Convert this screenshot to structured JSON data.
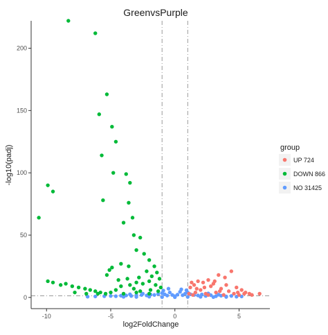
{
  "chart_data": {
    "type": "scatter",
    "title": "GreenvsPurple",
    "xlabel": "log2FoldChange",
    "ylabel": "-log10(padj)",
    "xlim": [
      -11.2,
      7.4
    ],
    "ylim": [
      -9,
      222
    ],
    "x_ticks": [
      -10,
      -5,
      0,
      5
    ],
    "y_ticks": [
      0,
      50,
      100,
      150,
      200
    ],
    "x_tick_labels": [
      "-10",
      "-5",
      "0",
      "5"
    ],
    "y_tick_labels": [
      "0",
      "50",
      "100",
      "150",
      "200"
    ],
    "thresholds": {
      "log2fc": [
        -1,
        1
      ],
      "padj_line": 1.3
    },
    "grid": false,
    "legend": {
      "title": "group",
      "position": "right",
      "entries": [
        {
          "key": "UP",
          "label": "UP 724",
          "color": "#F8766D"
        },
        {
          "key": "DOWN",
          "label": "DOWN 866",
          "color": "#00BA38"
        },
        {
          "key": "NO",
          "label": "NO 31425",
          "color": "#619CFF"
        }
      ]
    },
    "series": [
      {
        "name": "NO 31425",
        "color": "#619CFF",
        "points": [
          [
            -6.8,
            0.6
          ],
          [
            -6.2,
            0.8
          ],
          [
            -5.5,
            1.0
          ],
          [
            -5.0,
            1.2
          ],
          [
            -4.6,
            1.0
          ],
          [
            -4.2,
            1.4
          ],
          [
            -3.8,
            1.6
          ],
          [
            -3.4,
            1.2
          ],
          [
            -3.0,
            1.8
          ],
          [
            -2.6,
            2.0
          ],
          [
            -2.2,
            1.6
          ],
          [
            -1.9,
            2.4
          ],
          [
            -1.6,
            2.0
          ],
          [
            -1.3,
            2.8
          ],
          [
            -1.0,
            3.5
          ],
          [
            -0.8,
            2.5
          ],
          [
            -0.6,
            1.5
          ],
          [
            -0.4,
            4.0
          ],
          [
            -0.2,
            2.0
          ],
          [
            0.0,
            1.0
          ],
          [
            0.2,
            2.2
          ],
          [
            0.4,
            4.5
          ],
          [
            0.6,
            1.8
          ],
          [
            0.8,
            3.0
          ],
          [
            1.0,
            4.0
          ],
          [
            1.2,
            2.6
          ],
          [
            1.5,
            2.0
          ],
          [
            1.8,
            1.6
          ],
          [
            2.1,
            2.4
          ],
          [
            2.4,
            1.2
          ],
          [
            2.8,
            1.8
          ],
          [
            3.2,
            1.0
          ],
          [
            3.6,
            1.4
          ],
          [
            4.0,
            0.8
          ],
          [
            4.4,
            1.2
          ],
          [
            4.8,
            0.6
          ],
          [
            5.2,
            0.8
          ],
          [
            -4.0,
            0.5
          ],
          [
            -3.0,
            0.4
          ],
          [
            -2.0,
            0.6
          ],
          [
            -1.0,
            0.3
          ],
          [
            0.0,
            0.2
          ],
          [
            1.0,
            0.4
          ],
          [
            2.0,
            0.5
          ],
          [
            3.0,
            0.3
          ],
          [
            4.0,
            0.4
          ],
          [
            -0.9,
            5.5
          ],
          [
            0.9,
            5.8
          ],
          [
            -0.5,
            7.0
          ],
          [
            0.5,
            6.5
          ],
          [
            -2.5,
            3.0
          ],
          [
            2.6,
            3.2
          ],
          [
            -3.5,
            2.5
          ],
          [
            3.4,
            2.2
          ]
        ]
      },
      {
        "name": "DOWN 866",
        "color": "#00BA38",
        "points": [
          [
            -8.3,
            222
          ],
          [
            -6.2,
            212
          ],
          [
            -5.3,
            163
          ],
          [
            -4.9,
            137
          ],
          [
            -5.9,
            147
          ],
          [
            -4.6,
            125
          ],
          [
            -5.7,
            114
          ],
          [
            -3.8,
            99
          ],
          [
            -4.8,
            100
          ],
          [
            -3.5,
            92
          ],
          [
            -5.6,
            78
          ],
          [
            -3.6,
            76
          ],
          [
            -9.9,
            90
          ],
          [
            -9.5,
            85
          ],
          [
            -3.3,
            64
          ],
          [
            -10.6,
            64
          ],
          [
            -4.0,
            60
          ],
          [
            -2.7,
            48
          ],
          [
            -3.2,
            50
          ],
          [
            -3.0,
            38
          ],
          [
            -2.4,
            35
          ],
          [
            -4.2,
            27
          ],
          [
            -3.6,
            25
          ],
          [
            -2.0,
            30
          ],
          [
            -4.9,
            24
          ],
          [
            -5.1,
            22
          ],
          [
            -1.6,
            25
          ],
          [
            -2.2,
            21
          ],
          [
            -1.4,
            20
          ],
          [
            -5.3,
            18
          ],
          [
            -3.7,
            15
          ],
          [
            -4.4,
            14
          ],
          [
            -2.8,
            16
          ],
          [
            -1.8,
            17
          ],
          [
            -1.2,
            15
          ],
          [
            -9.9,
            13
          ],
          [
            -9.5,
            12
          ],
          [
            -8.9,
            10
          ],
          [
            -8.5,
            11
          ],
          [
            -8.0,
            9
          ],
          [
            -7.5,
            8
          ],
          [
            -7.0,
            7
          ],
          [
            -6.6,
            6
          ],
          [
            -6.2,
            5
          ],
          [
            -5.8,
            4
          ],
          [
            -5.4,
            3
          ],
          [
            -4.2,
            9
          ],
          [
            -3.5,
            10
          ],
          [
            -3.0,
            12
          ],
          [
            -2.5,
            11
          ],
          [
            -2.0,
            13
          ],
          [
            -1.5,
            10
          ],
          [
            -1.1,
            8
          ],
          [
            -4.6,
            6
          ],
          [
            -3.2,
            7
          ],
          [
            -2.7,
            5
          ],
          [
            -1.9,
            6
          ],
          [
            -1.3,
            5
          ],
          [
            -6.0,
            3
          ],
          [
            -5.0,
            4
          ],
          [
            -4.0,
            3
          ],
          [
            -3.0,
            4
          ],
          [
            -2.0,
            3
          ],
          [
            -7.8,
            4
          ],
          [
            -6.9,
            3
          ]
        ]
      },
      {
        "name": "UP 724",
        "color": "#F8766D",
        "points": [
          [
            4.4,
            21
          ],
          [
            3.4,
            18
          ],
          [
            3.9,
            16
          ],
          [
            2.6,
            14
          ],
          [
            1.8,
            13
          ],
          [
            2.2,
            12
          ],
          [
            3.0,
            11
          ],
          [
            1.5,
            10
          ],
          [
            2.8,
            9
          ],
          [
            4.8,
            8
          ],
          [
            1.2,
            8
          ],
          [
            3.6,
            7
          ],
          [
            5.2,
            6
          ],
          [
            2.0,
            6
          ],
          [
            4.2,
            5
          ],
          [
            6.6,
            3
          ],
          [
            5.8,
            3
          ],
          [
            5.5,
            4
          ],
          [
            3.2,
            4
          ],
          [
            1.6,
            4
          ],
          [
            2.4,
            3
          ],
          [
            4.6,
            3
          ],
          [
            1.1,
            3
          ],
          [
            6.0,
            2
          ],
          [
            5.0,
            2
          ],
          [
            3.8,
            2
          ],
          [
            2.6,
            2
          ],
          [
            1.4,
            2
          ],
          [
            4.0,
            10
          ],
          [
            3.1,
            13
          ],
          [
            2.3,
            8
          ],
          [
            1.3,
            12
          ],
          [
            1.7,
            7
          ],
          [
            3.5,
            5
          ],
          [
            4.9,
            4
          ],
          [
            5.4,
            3
          ]
        ]
      }
    ]
  }
}
